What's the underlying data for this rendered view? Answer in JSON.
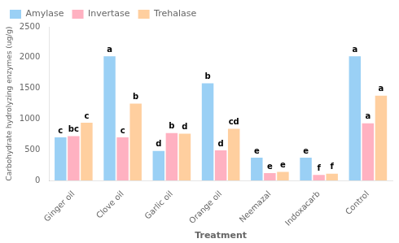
{
  "chart_data": {
    "type": "bar",
    "xlabel": "Treatment",
    "ylabel": "Carbohydrate hydrolyzing enzymes (ug/g)",
    "categories": [
      "Ginger oil",
      "Clove oil",
      "Garlic oil",
      "Orange oil",
      "Neemazal",
      "Indoxacarb",
      "Control"
    ],
    "series": [
      {
        "name": "Amylase",
        "values": [
          700,
          2020,
          480,
          1580,
          370,
          370,
          2020
        ],
        "annotations": [
          "c",
          "a",
          "d",
          "b",
          "e",
          "e",
          "a"
        ]
      },
      {
        "name": "Invertase",
        "values": [
          720,
          700,
          770,
          490,
          120,
          90,
          930
        ],
        "annotations": [
          "bc",
          "c",
          "b",
          "d",
          "e",
          "f",
          "a"
        ]
      },
      {
        "name": "Trehalase",
        "values": [
          940,
          1250,
          760,
          840,
          140,
          110,
          1380
        ],
        "annotations": [
          "c",
          "b",
          "d",
          "cd",
          "e",
          "f",
          "a"
        ]
      }
    ],
    "ylim": [
      0,
      2500
    ],
    "yticks": [
      0,
      500,
      1000,
      1500,
      2000,
      2500
    ],
    "grid": false,
    "legend": "upper left"
  }
}
